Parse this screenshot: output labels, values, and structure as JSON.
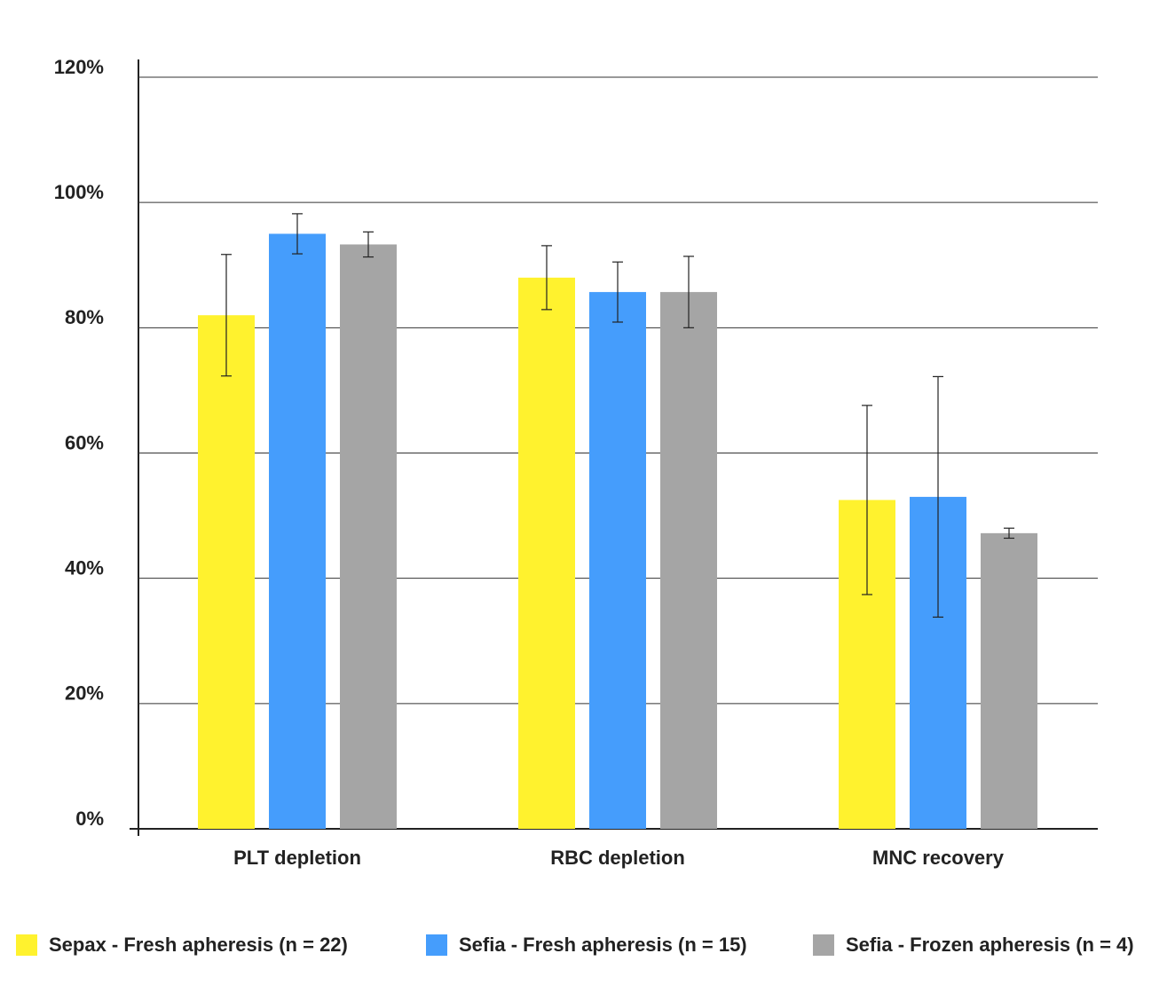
{
  "chart_data": {
    "type": "bar",
    "categories": [
      "PLT depletion",
      "RBC depletion",
      "MNC recovery"
    ],
    "series": [
      {
        "name": "Sepax - Fresh apheresis (n = 22)",
        "color": "#fff22e",
        "values": [
          82,
          88,
          52.5
        ],
        "errors": [
          9.7,
          5.1,
          15.1
        ]
      },
      {
        "name": "Sefia - Fresh apheresis (n = 15)",
        "color": "#459dfc",
        "values": [
          95,
          85.7,
          53
        ],
        "errors": [
          3.2,
          4.8,
          19.2
        ]
      },
      {
        "name": "Sefia - Frozen apheresis (n = 4)",
        "color": "#a5a5a5",
        "values": [
          93.3,
          85.7,
          47.2
        ],
        "errors": [
          2,
          5.7,
          0.8
        ]
      }
    ],
    "ylim": [
      0,
      120
    ],
    "yticks": [
      {
        "value": 0,
        "label": "0%"
      },
      {
        "value": 20,
        "label": "20%"
      },
      {
        "value": 40,
        "label": "40%"
      },
      {
        "value": 60,
        "label": "60%"
      },
      {
        "value": 80,
        "label": "80%"
      },
      {
        "value": 100,
        "label": "100%"
      },
      {
        "value": 120,
        "label": "120%"
      }
    ],
    "grid": true,
    "legend": "bottom"
  }
}
